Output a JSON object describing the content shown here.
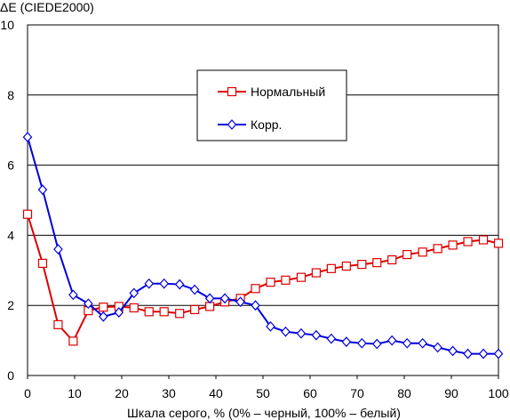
{
  "chart_data": {
    "type": "line",
    "ylabel": "ΔE (CIEDE2000)",
    "xlabel": "Шкала серого, % (0% – черный, 100% – белый)",
    "xlim": [
      0,
      100
    ],
    "ylim": [
      0,
      10
    ],
    "x_ticks": [
      "0",
      "10",
      "20",
      "30",
      "40",
      "50",
      "60",
      "70",
      "80",
      "90",
      "100"
    ],
    "y_ticks": [
      "0",
      "2",
      "4",
      "6",
      "8",
      "10"
    ],
    "grid": "horizontal",
    "legend_position": "top-center",
    "x": [
      0,
      3.2,
      6.5,
      9.7,
      12.9,
      16.1,
      19.4,
      22.6,
      25.8,
      29.0,
      32.3,
      35.5,
      38.7,
      41.9,
      45.2,
      48.4,
      51.6,
      54.8,
      58.1,
      61.3,
      64.5,
      67.7,
      71.0,
      74.2,
      77.4,
      80.6,
      83.9,
      87.1,
      90.3,
      93.5,
      96.8,
      100
    ],
    "series": [
      {
        "name": "Нормальный",
        "color": "#dd0000",
        "marker": "square",
        "values": [
          4.6,
          3.2,
          1.45,
          0.98,
          1.85,
          1.95,
          1.97,
          1.93,
          1.82,
          1.82,
          1.77,
          1.88,
          1.97,
          2.1,
          2.2,
          2.48,
          2.66,
          2.72,
          2.8,
          2.93,
          3.05,
          3.12,
          3.17,
          3.22,
          3.3,
          3.45,
          3.52,
          3.62,
          3.72,
          3.82,
          3.87,
          3.77
        ]
      },
      {
        "name": "Корр.",
        "color": "#0000dd",
        "marker": "diamond",
        "values": [
          6.8,
          5.3,
          3.6,
          2.3,
          2.05,
          1.68,
          1.8,
          2.35,
          2.62,
          2.62,
          2.6,
          2.45,
          2.2,
          2.2,
          2.1,
          2.0,
          1.4,
          1.25,
          1.2,
          1.15,
          1.05,
          0.96,
          0.92,
          0.9,
          1.0,
          0.92,
          0.92,
          0.8,
          0.7,
          0.62,
          0.62,
          0.62
        ]
      }
    ]
  }
}
